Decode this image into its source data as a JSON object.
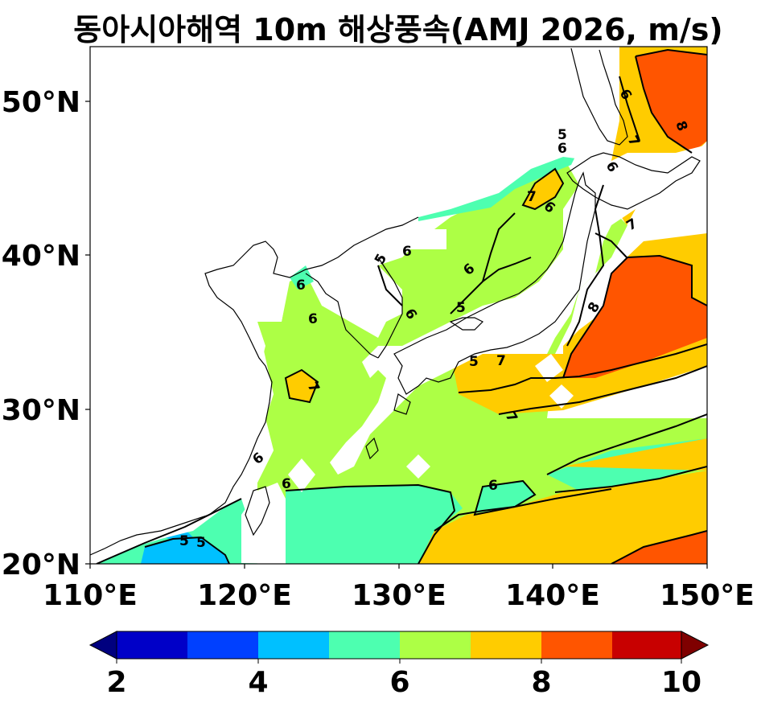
{
  "title": "동아시아해역 10m 해상풍속(AMJ 2026, m/s)",
  "map": {
    "lon_range": [
      110,
      150
    ],
    "lat_range": [
      20,
      53.5
    ],
    "lon_ticks": [
      "110°E",
      "120°E",
      "130°E",
      "140°E",
      "150°E"
    ],
    "lat_ticks": [
      "20°N",
      "30°N",
      "40°N",
      "50°N"
    ],
    "contour_labels": [
      "5",
      "6",
      "6",
      "6",
      "6",
      "6",
      "6",
      "6",
      "6",
      "6",
      "6",
      "6",
      "6",
      "7",
      "7",
      "7",
      "7",
      "7",
      "7",
      "8",
      "8",
      "5",
      "5",
      "5",
      "5",
      "5"
    ]
  },
  "colorbar": {
    "ticks": [
      "2",
      "4",
      "6",
      "8",
      "10"
    ],
    "levels": [
      2,
      3,
      4,
      5,
      6,
      7,
      8,
      9,
      10
    ],
    "colors": [
      "#00007f",
      "#0000c8",
      "#0040ff",
      "#00c0ff",
      "#4dffb0",
      "#adff45",
      "#ffcc00",
      "#ff5500",
      "#c80000",
      "#7f0000"
    ]
  }
}
